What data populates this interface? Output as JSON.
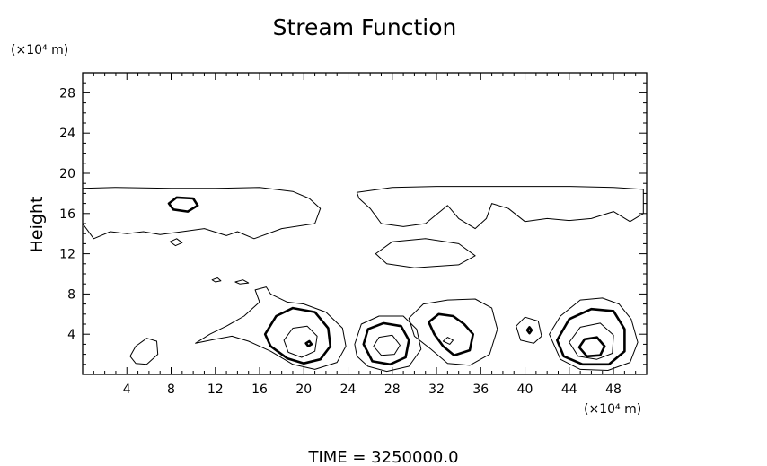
{
  "chart_data": {
    "type": "contour",
    "title": "Stream Function",
    "xlabel": "",
    "ylabel": "Height",
    "x_unit": "(×10⁴ m)",
    "y_unit": "(×10⁴ m)",
    "xlim": [
      0,
      51
    ],
    "ylim": [
      0,
      30
    ],
    "x_ticks": [
      "4",
      "8",
      "12",
      "16",
      "20",
      "24",
      "28",
      "32",
      "36",
      "40",
      "44",
      "48"
    ],
    "y_ticks": [
      "4",
      "8",
      "12",
      "16",
      "20",
      "24",
      "28"
    ],
    "footer": "TIME = 3250000.0",
    "contours": [
      {
        "name": "upper-band",
        "weight": "thin",
        "points": [
          [
            0,
            18.5
          ],
          [
            3,
            18.6
          ],
          [
            8,
            18.5
          ],
          [
            12,
            18.5
          ],
          [
            16,
            18.6
          ],
          [
            19,
            18.2
          ],
          [
            20.5,
            17.5
          ],
          [
            21.5,
            16.5
          ],
          [
            21,
            15
          ],
          [
            18,
            14.5
          ],
          [
            15.5,
            13.5
          ],
          [
            14,
            14.2
          ],
          [
            13,
            13.8
          ],
          [
            11,
            14.5
          ],
          [
            9,
            14.2
          ],
          [
            7,
            13.9
          ],
          [
            5.5,
            14.2
          ],
          [
            4,
            14
          ],
          [
            2.5,
            14.2
          ],
          [
            1,
            13.5
          ],
          [
            0,
            15
          ]
        ]
      },
      {
        "name": "upper-band-right",
        "weight": "thin",
        "points": [
          [
            24.8,
            18.1
          ],
          [
            28,
            18.6
          ],
          [
            32,
            18.7
          ],
          [
            38,
            18.7
          ],
          [
            44,
            18.7
          ],
          [
            48,
            18.6
          ],
          [
            50.7,
            18.4
          ],
          [
            50.7,
            16
          ],
          [
            49.5,
            15.2
          ],
          [
            48,
            16.2
          ],
          [
            46,
            15.5
          ],
          [
            44,
            15.3
          ],
          [
            42,
            15.5
          ],
          [
            40,
            15.2
          ],
          [
            38.5,
            16.5
          ],
          [
            37,
            17
          ],
          [
            36.5,
            15.5
          ],
          [
            35.5,
            14.5
          ],
          [
            34,
            15.5
          ],
          [
            33,
            16.8
          ],
          [
            31,
            15
          ],
          [
            29,
            14.7
          ],
          [
            27,
            15
          ],
          [
            26,
            16.5
          ],
          [
            25,
            17.5
          ],
          [
            24.8,
            18.1
          ]
        ]
      },
      {
        "name": "mid-cell",
        "weight": "thin",
        "points": [
          [
            26.5,
            12
          ],
          [
            28,
            13.2
          ],
          [
            31,
            13.5
          ],
          [
            34,
            13
          ],
          [
            35.5,
            11.8
          ],
          [
            34,
            10.9
          ],
          [
            30,
            10.6
          ],
          [
            27.5,
            11
          ],
          [
            26.5,
            12
          ]
        ]
      },
      {
        "name": "small-cell-1",
        "weight": "thick",
        "points": [
          [
            7.8,
            17
          ],
          [
            8.5,
            17.6
          ],
          [
            10,
            17.5
          ],
          [
            10.4,
            16.8
          ],
          [
            9.5,
            16.2
          ],
          [
            8.2,
            16.4
          ],
          [
            7.8,
            17
          ]
        ]
      },
      {
        "name": "small-cell-2",
        "weight": "thin",
        "points": [
          [
            7.9,
            13.2
          ],
          [
            8.5,
            13.5
          ],
          [
            9,
            13.1
          ],
          [
            8.4,
            12.8
          ],
          [
            7.9,
            13.2
          ]
        ]
      },
      {
        "name": "island-1",
        "weight": "thin",
        "points": [
          [
            11.7,
            9.4
          ],
          [
            12.2,
            9.6
          ],
          [
            12.5,
            9.3
          ],
          [
            12,
            9.2
          ],
          [
            11.7,
            9.4
          ]
        ]
      },
      {
        "name": "island-2",
        "weight": "thin",
        "points": [
          [
            13.8,
            9.2
          ],
          [
            14.5,
            9.4
          ],
          [
            15,
            9.1
          ],
          [
            14.2,
            9
          ],
          [
            13.8,
            9.2
          ]
        ]
      },
      {
        "name": "lower-large",
        "weight": "thin",
        "points": [
          [
            10.2,
            3.1
          ],
          [
            11.5,
            4
          ],
          [
            13,
            4.8
          ],
          [
            14.6,
            5.8
          ],
          [
            15.2,
            6.4
          ],
          [
            16,
            7.2
          ],
          [
            15.6,
            8.4
          ],
          [
            16.6,
            8.7
          ],
          [
            17,
            8
          ],
          [
            18.5,
            7.2
          ],
          [
            20,
            7
          ],
          [
            22,
            6.2
          ],
          [
            23.5,
            4.6
          ],
          [
            23.8,
            2.8
          ],
          [
            23,
            1.2
          ],
          [
            21,
            0.5
          ],
          [
            19,
            1
          ],
          [
            17,
            2.3
          ],
          [
            15,
            3.3
          ],
          [
            13.5,
            3.8
          ],
          [
            12,
            3.5
          ],
          [
            10.2,
            3.1
          ]
        ]
      },
      {
        "name": "cell-a-mid",
        "weight": "thick",
        "points": [
          [
            16.5,
            4
          ],
          [
            17.5,
            5.8
          ],
          [
            19,
            6.6
          ],
          [
            21,
            6.2
          ],
          [
            22.2,
            4.6
          ],
          [
            22.4,
            2.8
          ],
          [
            21.5,
            1.5
          ],
          [
            20,
            1.1
          ],
          [
            18.5,
            1.6
          ],
          [
            17,
            2.8
          ],
          [
            16.5,
            4
          ]
        ]
      },
      {
        "name": "cell-a-inner",
        "weight": "thin",
        "points": [
          [
            18.2,
            3.4
          ],
          [
            19,
            4.6
          ],
          [
            20.3,
            4.8
          ],
          [
            21.2,
            3.8
          ],
          [
            21,
            2.3
          ],
          [
            19.8,
            1.7
          ],
          [
            18.6,
            2.2
          ],
          [
            18.2,
            3.4
          ]
        ]
      },
      {
        "name": "cell-a-core",
        "weight": "thick",
        "points": [
          [
            20.2,
            3.1
          ],
          [
            20.5,
            3.3
          ],
          [
            20.7,
            3
          ],
          [
            20.4,
            2.8
          ],
          [
            20.2,
            3.1
          ]
        ]
      },
      {
        "name": "cell-b-outer",
        "weight": "thin",
        "points": [
          [
            24.6,
            3
          ],
          [
            25.2,
            5
          ],
          [
            26.8,
            5.8
          ],
          [
            29,
            5.8
          ],
          [
            30.2,
            4.5
          ],
          [
            30.6,
            2.5
          ],
          [
            29.5,
            0.8
          ],
          [
            27.5,
            0.3
          ],
          [
            25.8,
            0.8
          ],
          [
            24.8,
            1.8
          ],
          [
            24.6,
            3
          ]
        ]
      },
      {
        "name": "cell-b-mid",
        "weight": "thick",
        "points": [
          [
            25.4,
            3
          ],
          [
            25.8,
            4.5
          ],
          [
            27.2,
            5.1
          ],
          [
            28.8,
            4.8
          ],
          [
            29.5,
            3.4
          ],
          [
            29.2,
            1.7
          ],
          [
            27.8,
            1
          ],
          [
            26.2,
            1.3
          ],
          [
            25.4,
            3
          ]
        ]
      },
      {
        "name": "cell-b-inner",
        "weight": "thin",
        "points": [
          [
            26.3,
            2.8
          ],
          [
            26.8,
            3.7
          ],
          [
            28,
            3.9
          ],
          [
            28.7,
            2.9
          ],
          [
            28.2,
            2
          ],
          [
            27,
            1.9
          ],
          [
            26.3,
            2.8
          ]
        ]
      },
      {
        "name": "cell-c-outer",
        "weight": "thin",
        "points": [
          [
            29.5,
            5.6
          ],
          [
            30.8,
            7
          ],
          [
            33,
            7.4
          ],
          [
            35.5,
            7.5
          ],
          [
            37,
            6.6
          ],
          [
            37.5,
            4.5
          ],
          [
            36.8,
            2
          ],
          [
            35,
            0.9
          ],
          [
            33,
            1.1
          ],
          [
            31.5,
            2.5
          ],
          [
            30,
            3.8
          ],
          [
            29.5,
            5.6
          ]
        ]
      },
      {
        "name": "cell-c-mid",
        "weight": "thick",
        "points": [
          [
            31.3,
            5.2
          ],
          [
            32.2,
            6
          ],
          [
            33.5,
            5.8
          ],
          [
            34.5,
            5
          ],
          [
            35.3,
            4
          ],
          [
            35,
            2.4
          ],
          [
            33.6,
            1.9
          ],
          [
            32.6,
            2.8
          ],
          [
            31.8,
            4
          ],
          [
            31.3,
            5.2
          ]
        ]
      },
      {
        "name": "cell-c-inner",
        "weight": "thin",
        "points": [
          [
            32.6,
            3.3
          ],
          [
            33,
            3.7
          ],
          [
            33.5,
            3.4
          ],
          [
            33.2,
            3
          ],
          [
            32.6,
            3.3
          ]
        ]
      },
      {
        "name": "cell-d-outer",
        "weight": "thin",
        "points": [
          [
            39.2,
            4.8
          ],
          [
            40,
            5.7
          ],
          [
            41.2,
            5.3
          ],
          [
            41.5,
            3.8
          ],
          [
            40.8,
            3.1
          ],
          [
            39.6,
            3.4
          ],
          [
            39.2,
            4.8
          ]
        ]
      },
      {
        "name": "cell-d-core",
        "weight": "thick",
        "points": [
          [
            40.2,
            4.4
          ],
          [
            40.4,
            4.7
          ],
          [
            40.6,
            4.4
          ],
          [
            40.4,
            4.1
          ],
          [
            40.2,
            4.4
          ]
        ]
      },
      {
        "name": "cell-e-outer",
        "weight": "thin",
        "points": [
          [
            42.2,
            4
          ],
          [
            43.2,
            5.8
          ],
          [
            45,
            7.4
          ],
          [
            47,
            7.6
          ],
          [
            48.5,
            7
          ],
          [
            49.6,
            5.5
          ],
          [
            50.2,
            3.2
          ],
          [
            49.5,
            1.2
          ],
          [
            47.5,
            0.4
          ],
          [
            45,
            0.5
          ],
          [
            43.2,
            1.5
          ],
          [
            42.2,
            4
          ]
        ]
      },
      {
        "name": "cell-e-mid1",
        "weight": "thick",
        "points": [
          [
            42.9,
            3.4
          ],
          [
            44,
            5.5
          ],
          [
            46,
            6.5
          ],
          [
            48,
            6.3
          ],
          [
            49,
            4.5
          ],
          [
            49,
            2.3
          ],
          [
            47.6,
            1
          ],
          [
            45.2,
            1
          ],
          [
            43.5,
            1.8
          ],
          [
            42.9,
            3.4
          ]
        ]
      },
      {
        "name": "cell-e-mid2",
        "weight": "thin",
        "points": [
          [
            44,
            3.2
          ],
          [
            45,
            4.7
          ],
          [
            46.8,
            5.1
          ],
          [
            48,
            3.9
          ],
          [
            47.9,
            2.1
          ],
          [
            46.5,
            1.5
          ],
          [
            44.8,
            1.8
          ],
          [
            44,
            3.2
          ]
        ]
      },
      {
        "name": "cell-e-inner",
        "weight": "thick",
        "points": [
          [
            44.9,
            2.7
          ],
          [
            45.4,
            3.5
          ],
          [
            46.5,
            3.7
          ],
          [
            47.2,
            2.8
          ],
          [
            46.8,
            1.9
          ],
          [
            45.6,
            1.8
          ],
          [
            44.9,
            2.7
          ]
        ]
      },
      {
        "name": "cell-f",
        "weight": "thin",
        "points": [
          [
            4.3,
            1.8
          ],
          [
            4.8,
            2.8
          ],
          [
            5.8,
            3.6
          ],
          [
            6.7,
            3.3
          ],
          [
            6.8,
            2
          ],
          [
            5.8,
            1
          ],
          [
            4.8,
            1.1
          ],
          [
            4.3,
            1.8
          ]
        ]
      }
    ]
  }
}
